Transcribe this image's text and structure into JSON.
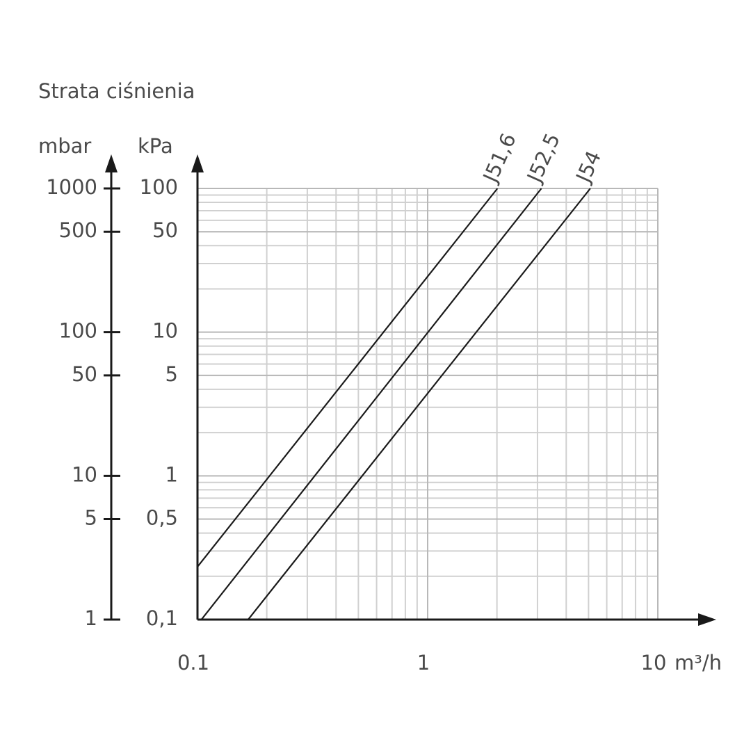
{
  "chart_data": {
    "type": "line",
    "title": "Strata ciśnienia",
    "y_label": "kPa",
    "y2_label": "mbar",
    "x_label": "m³/h",
    "log_x": true,
    "log_y": true,
    "grid": true,
    "xlim": [
      0.1,
      10
    ],
    "xticks": [
      0.1,
      1,
      10
    ],
    "ylim": [
      0.1,
      100
    ],
    "yticks": [
      {
        "value": 0.1,
        "label": "0,1"
      },
      {
        "value": 0.5,
        "label": "0,5"
      },
      1,
      5,
      10,
      50,
      100
    ],
    "y2lim": [
      1,
      1000
    ],
    "y2ticks": [
      1,
      5,
      10,
      50,
      100,
      500,
      1000
    ],
    "series": [
      {
        "name": "J51,6",
        "color": "#1a1a1a",
        "x": [
          0.1,
          2.01
        ],
        "values": [
          0.233,
          100
        ]
      },
      {
        "name": "J52,5",
        "color": "#1a1a1a",
        "x": [
          0.104,
          3.12
        ],
        "values": [
          0.1,
          100
        ]
      },
      {
        "name": "J54",
        "color": "#1a1a1a",
        "x": [
          0.166,
          5.09
        ],
        "values": [
          0.1,
          100
        ]
      }
    ]
  }
}
